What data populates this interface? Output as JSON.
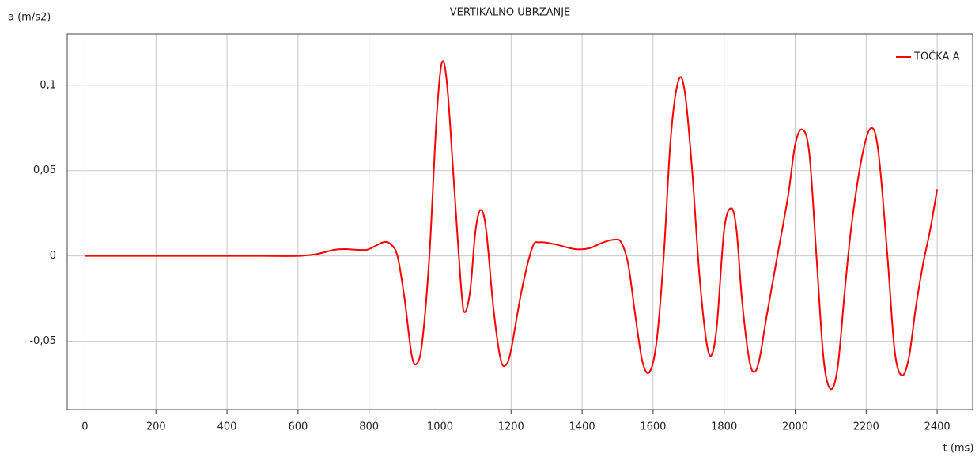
{
  "chart_data": {
    "type": "line",
    "title": "VERTIKALNO UBRZANJE",
    "y_label": "a (m/s2)",
    "x_label": "t (ms)",
    "xlim": [
      -50,
      2500
    ],
    "ylim": [
      -0.09,
      0.13
    ],
    "xticks": [
      0,
      200,
      400,
      600,
      800,
      1000,
      1200,
      1400,
      1600,
      1800,
      2000,
      2200,
      2400
    ],
    "yticks": [
      {
        "value": -0.05,
        "label": "-0,05"
      },
      0,
      {
        "value": 0.05,
        "label": "0,05"
      },
      {
        "value": 0.1,
        "label": "0,1"
      }
    ],
    "grid": true,
    "legend": "top-right",
    "x": [
      0,
      100,
      200,
      300,
      400,
      500,
      600,
      650,
      700,
      730,
      780,
      800,
      840,
      860,
      880,
      900,
      920,
      935,
      950,
      970,
      990,
      1005,
      1020,
      1040,
      1060,
      1070,
      1085,
      1100,
      1115,
      1130,
      1150,
      1170,
      1185,
      1200,
      1230,
      1260,
      1280,
      1320,
      1380,
      1420,
      1460,
      1490,
      1510,
      1530,
      1550,
      1570,
      1590,
      1610,
      1630,
      1650,
      1672,
      1690,
      1710,
      1730,
      1750,
      1765,
      1780,
      1800,
      1820,
      1835,
      1850,
      1870,
      1885,
      1900,
      1920,
      1950,
      1980,
      2000,
      2020,
      2040,
      2060,
      2080,
      2100,
      2120,
      2140,
      2160,
      2190,
      2215,
      2235,
      2260,
      2280,
      2300,
      2320,
      2340,
      2360,
      2380,
      2400
    ],
    "series": [
      {
        "name": "TOČKA A",
        "color": "#ff0000",
        "values": [
          0,
          0,
          0,
          0,
          0,
          0,
          0,
          0.001,
          0.0035,
          0.004,
          0.0035,
          0.004,
          0.008,
          0.007,
          0,
          -0.025,
          -0.058,
          -0.063,
          -0.05,
          0,
          0.08,
          0.113,
          0.1,
          0.04,
          -0.02,
          -0.033,
          -0.02,
          0.015,
          0.027,
          0.015,
          -0.03,
          -0.06,
          -0.064,
          -0.055,
          -0.02,
          0.005,
          0.008,
          0.007,
          0.004,
          0.0045,
          0.008,
          0.0095,
          0.008,
          -0.005,
          -0.035,
          -0.062,
          -0.068,
          -0.05,
          0,
          0.07,
          0.103,
          0.095,
          0.05,
          -0.01,
          -0.05,
          -0.058,
          -0.04,
          0.015,
          0.028,
          0.015,
          -0.025,
          -0.06,
          -0.068,
          -0.06,
          -0.035,
          0,
          0.035,
          0.065,
          0.074,
          0.06,
          0,
          -0.06,
          -0.078,
          -0.065,
          -0.02,
          0.02,
          0.06,
          0.075,
          0.06,
          0,
          -0.055,
          -0.07,
          -0.06,
          -0.03,
          -0.005,
          0.015,
          0.039
        ]
      }
    ]
  }
}
